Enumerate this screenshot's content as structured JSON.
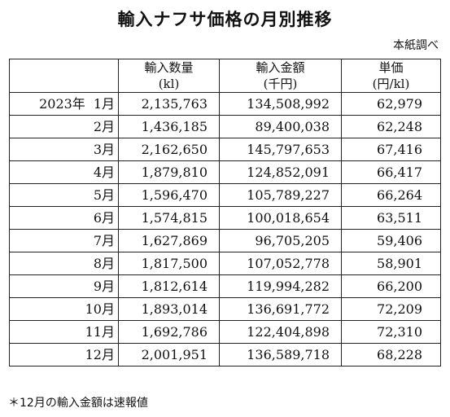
{
  "title": "輸入ナフサ価格の月別推移",
  "source": "本紙調べ",
  "headers": {
    "quantity": "輸入数量",
    "quantity_unit": "(kl)",
    "amount": "輸入金額",
    "amount_unit": "(千円)",
    "price": "単価",
    "price_unit": "(円/kl)"
  },
  "year_label": "2023年",
  "rows": [
    {
      "month": "1月",
      "quantity": "2,135,763",
      "amount": "134,508,992",
      "price": "62,979"
    },
    {
      "month": "2月",
      "quantity": "1,436,185",
      "amount": "89,400,038",
      "price": "62,248"
    },
    {
      "month": "3月",
      "quantity": "2,162,650",
      "amount": "145,797,653",
      "price": "67,416"
    },
    {
      "month": "4月",
      "quantity": "1,879,810",
      "amount": "124,852,091",
      "price": "66,417"
    },
    {
      "month": "5月",
      "quantity": "1,596,470",
      "amount": "105,789,227",
      "price": "66,264"
    },
    {
      "month": "6月",
      "quantity": "1,574,815",
      "amount": "100,018,654",
      "price": "63,511"
    },
    {
      "month": "7月",
      "quantity": "1,627,869",
      "amount": "96,705,205",
      "price": "59,406"
    },
    {
      "month": "8月",
      "quantity": "1,817,500",
      "amount": "107,052,778",
      "price": "58,901"
    },
    {
      "month": "9月",
      "quantity": "1,812,614",
      "amount": "119,994,282",
      "price": "66,200"
    },
    {
      "month": "10月",
      "quantity": "1,893,014",
      "amount": "136,691,772",
      "price": "72,209"
    },
    {
      "month": "11月",
      "quantity": "1,692,786",
      "amount": "122,404,898",
      "price": "72,310"
    },
    {
      "month": "12月",
      "quantity": "2,001,951",
      "amount": "136,589,718",
      "price": "68,228"
    }
  ],
  "note": "＊12月の輸入金額は速報値"
}
